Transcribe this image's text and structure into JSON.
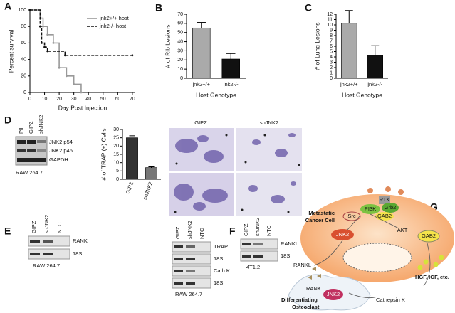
{
  "panels": [
    "A",
    "B",
    "C",
    "D",
    "E",
    "F",
    "G"
  ],
  "chart_data": [
    {
      "type": "line",
      "ylabel": "Percent survival",
      "xlabel": "Day Post Injection",
      "xlim": [
        0,
        72
      ],
      "xticks": [
        0,
        10,
        20,
        30,
        40,
        50,
        60,
        70
      ],
      "ylim": [
        0,
        100
      ],
      "yticks": [
        0,
        20,
        40,
        60,
        80,
        100
      ],
      "legend": "upper right",
      "series": [
        {
          "name": "jnk2+/+ host",
          "color": "#999999",
          "line_style": "solid",
          "x": [
            0,
            7,
            9,
            12,
            16,
            20,
            25,
            30,
            35
          ],
          "values": [
            100,
            90,
            80,
            70,
            60,
            30,
            20,
            10,
            0
          ]
        },
        {
          "name": "jnk2-/- host",
          "color": "#111111",
          "line_style": "dashed",
          "x": [
            0,
            7,
            8,
            10,
            12,
            24,
            70
          ],
          "values": [
            100,
            80,
            60,
            55,
            50,
            45,
            45
          ]
        }
      ]
    },
    {
      "type": "bar",
      "ylabel": "# of Rib Lesions",
      "xlabel": "Host Genotype",
      "categories": [
        "jnk2+/+",
        "jnk2-/-"
      ],
      "values": [
        55,
        21
      ],
      "errors": [
        6,
        6
      ],
      "colors": [
        "#aaaaaa",
        "#111111"
      ],
      "ylim": [
        0,
        70
      ],
      "yticks": [
        0,
        10,
        20,
        30,
        40,
        50,
        60,
        70
      ]
    },
    {
      "type": "bar",
      "ylabel": "# of Lung Lesions",
      "xlabel": "Host Genotype",
      "categories": [
        "jnk2+/+",
        "jnk2-/-"
      ],
      "values": [
        10.3,
        4.3
      ],
      "errors": [
        2.4,
        1.8
      ],
      "colors": [
        "#aaaaaa",
        "#111111"
      ],
      "ylim": [
        0,
        12
      ],
      "yticks": [
        0,
        1,
        2,
        3,
        4,
        5,
        6,
        7,
        8,
        9,
        10,
        11,
        12
      ]
    },
    {
      "type": "bar",
      "ylabel": "# of TRAP (+) Cells",
      "categories": [
        "GIPZ",
        "shJNK2"
      ],
      "values": [
        25,
        7
      ],
      "errors": [
        1.2,
        0.5
      ],
      "colors": [
        "#333333",
        "#777777"
      ],
      "ylim": [
        0,
        30
      ],
      "yticks": [
        0,
        5,
        10,
        15,
        20,
        25,
        30
      ]
    }
  ],
  "blot_d": {
    "lanes": [
      "Pll",
      "GIPZ",
      "shJNK2"
    ],
    "bands": [
      "JNK2 p54",
      "JNK2 p46",
      "GAPDH"
    ],
    "cell_line": "RAW 264.7"
  },
  "micrographs": [
    "GIPZ",
    "shJNK2"
  ],
  "blot_e1": {
    "lanes": [
      "GIPZ",
      "shJNK2",
      "NTC"
    ],
    "bands": [
      "RANK",
      "18S"
    ],
    "cell_line": "RAW 264.7"
  },
  "blot_e2": {
    "lanes": [
      "GIPZ",
      "shJNK2",
      "NTC"
    ],
    "bands": [
      "TRAP",
      "18S",
      "Cath K",
      "18S"
    ],
    "cell_line": "RAW 264.7"
  },
  "blot_f": {
    "lanes": [
      "GIPZ",
      "shJNK2",
      "NTC"
    ],
    "bands": [
      "RANKL",
      "18S"
    ],
    "cell_line": "4T1.2"
  },
  "diagram_g": {
    "cell": [
      "Metastatic",
      "Cancer Cell"
    ],
    "rtk": "RTK",
    "pi3k": "PI3K",
    "grb2": "Grb2",
    "gab2_top": "GAB2",
    "src": "Src",
    "jnk2": "JNK2",
    "akt": "AKT",
    "gab2_side": "GAB2",
    "rankl": "RANKL",
    "rank": "RANK",
    "jnk2_osteo": "JNK2",
    "osteoclast": [
      "Differentiating",
      "Osteoclast"
    ],
    "cathepsin": "Cathepsin K",
    "factors": "HGF, IGF, etc."
  }
}
